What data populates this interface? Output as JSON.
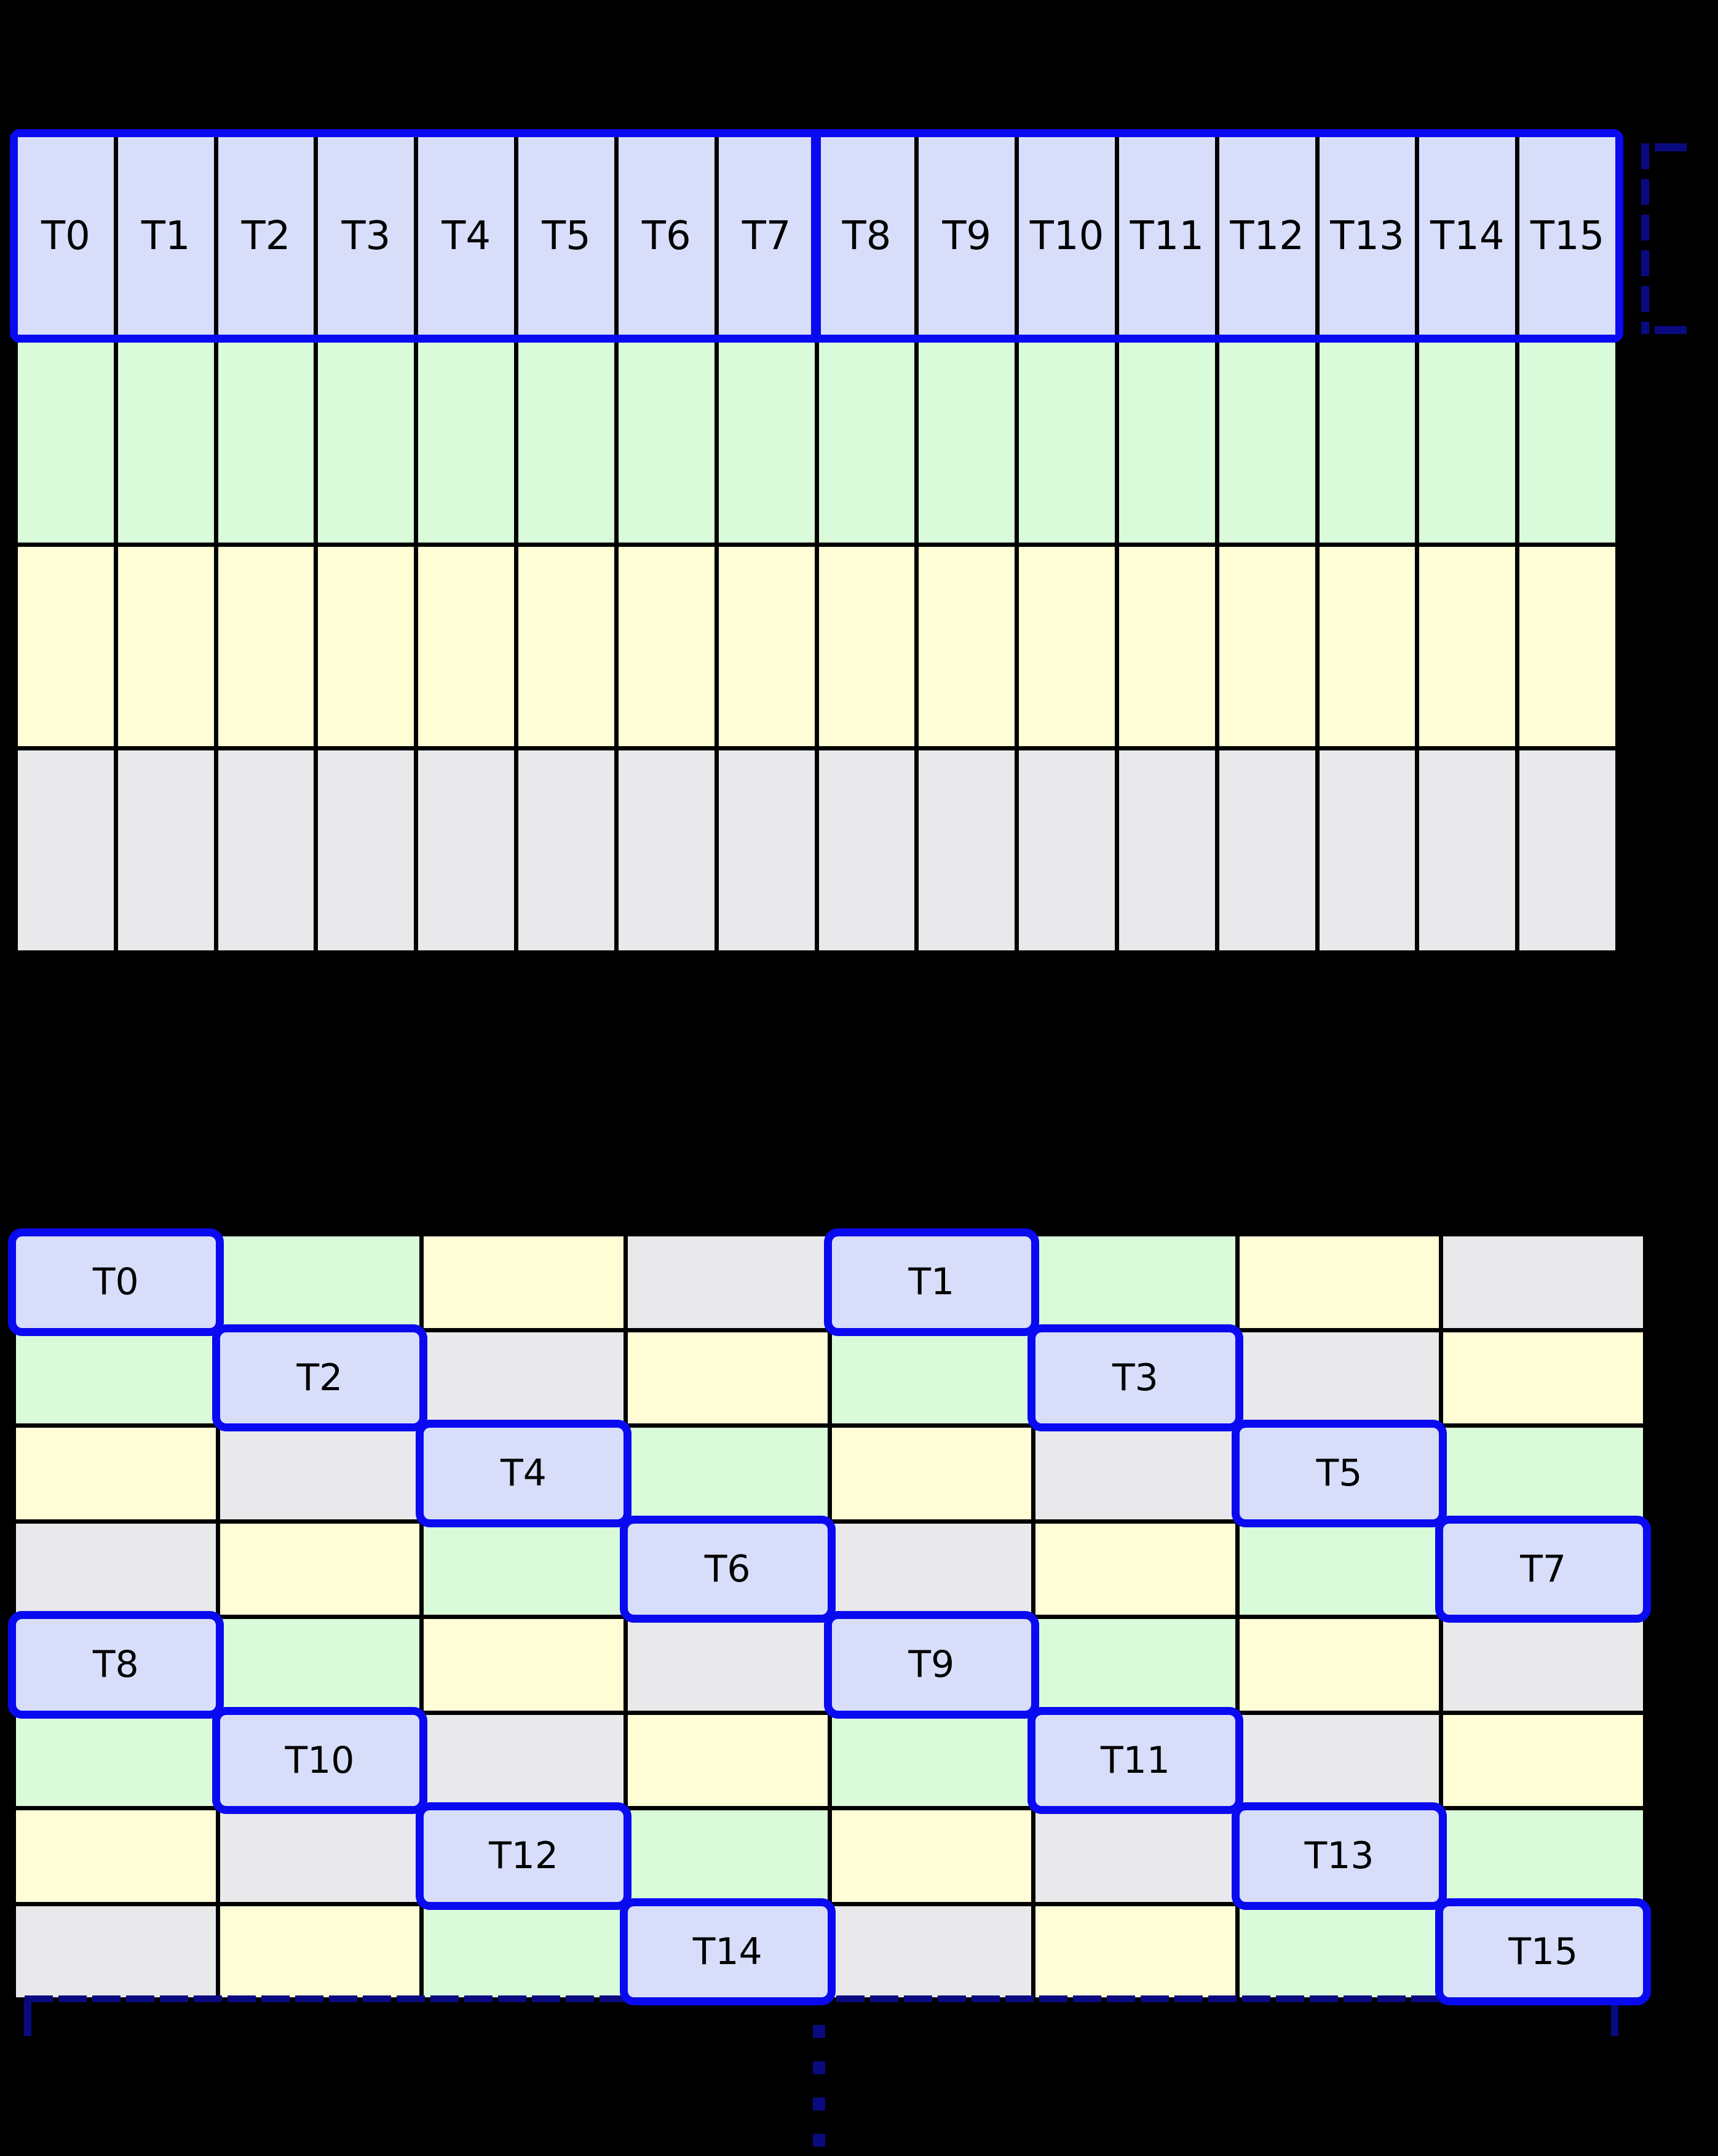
{
  "palette": {
    "cell_blue": "#d8defa",
    "cell_green": "#dafbda",
    "cell_yellow": "#fffdd6",
    "cell_gray": "#e9e8ea",
    "highlight_blue": "#0a0af0",
    "bracket_navy": "#0a0a80",
    "grid_line": "#000000",
    "label_color": "#000000",
    "background": "#000000"
  },
  "top_grid": {
    "columns": 16,
    "header_labels": [
      "T0",
      "T1",
      "T2",
      "T3",
      "T4",
      "T5",
      "T6",
      "T7",
      "T8",
      "T9",
      "T10",
      "T11",
      "T12",
      "T13",
      "T14",
      "T15"
    ],
    "data_row_colors": [
      "green",
      "yellow",
      "gray"
    ]
  },
  "bottom_grid": {
    "rows": [
      [
        {
          "color": "blue",
          "label": "T0"
        },
        {
          "color": "green",
          "label": ""
        },
        {
          "color": "yellow",
          "label": ""
        },
        {
          "color": "gray",
          "label": ""
        },
        {
          "color": "blue",
          "label": "T1"
        },
        {
          "color": "green",
          "label": ""
        },
        {
          "color": "yellow",
          "label": ""
        },
        {
          "color": "gray",
          "label": ""
        }
      ],
      [
        {
          "color": "green",
          "label": ""
        },
        {
          "color": "blue",
          "label": "T2"
        },
        {
          "color": "gray",
          "label": ""
        },
        {
          "color": "yellow",
          "label": ""
        },
        {
          "color": "green",
          "label": ""
        },
        {
          "color": "blue",
          "label": "T3"
        },
        {
          "color": "gray",
          "label": ""
        },
        {
          "color": "yellow",
          "label": ""
        }
      ],
      [
        {
          "color": "yellow",
          "label": ""
        },
        {
          "color": "gray",
          "label": ""
        },
        {
          "color": "blue",
          "label": "T4"
        },
        {
          "color": "green",
          "label": ""
        },
        {
          "color": "yellow",
          "label": ""
        },
        {
          "color": "gray",
          "label": ""
        },
        {
          "color": "blue",
          "label": "T5"
        },
        {
          "color": "green",
          "label": ""
        }
      ],
      [
        {
          "color": "gray",
          "label": ""
        },
        {
          "color": "yellow",
          "label": ""
        },
        {
          "color": "green",
          "label": ""
        },
        {
          "color": "blue",
          "label": "T6"
        },
        {
          "color": "gray",
          "label": ""
        },
        {
          "color": "yellow",
          "label": ""
        },
        {
          "color": "green",
          "label": ""
        },
        {
          "color": "blue",
          "label": "T7"
        }
      ],
      [
        {
          "color": "blue",
          "label": "T8"
        },
        {
          "color": "green",
          "label": ""
        },
        {
          "color": "yellow",
          "label": ""
        },
        {
          "color": "gray",
          "label": ""
        },
        {
          "color": "blue",
          "label": "T9"
        },
        {
          "color": "green",
          "label": ""
        },
        {
          "color": "yellow",
          "label": ""
        },
        {
          "color": "gray",
          "label": ""
        }
      ],
      [
        {
          "color": "green",
          "label": ""
        },
        {
          "color": "blue",
          "label": "T10"
        },
        {
          "color": "gray",
          "label": ""
        },
        {
          "color": "yellow",
          "label": ""
        },
        {
          "color": "green",
          "label": ""
        },
        {
          "color": "blue",
          "label": "T11"
        },
        {
          "color": "gray",
          "label": ""
        },
        {
          "color": "yellow",
          "label": ""
        }
      ],
      [
        {
          "color": "yellow",
          "label": ""
        },
        {
          "color": "gray",
          "label": ""
        },
        {
          "color": "blue",
          "label": "T12"
        },
        {
          "color": "green",
          "label": ""
        },
        {
          "color": "yellow",
          "label": ""
        },
        {
          "color": "gray",
          "label": ""
        },
        {
          "color": "blue",
          "label": "T13"
        },
        {
          "color": "green",
          "label": ""
        }
      ],
      [
        {
          "color": "gray",
          "label": ""
        },
        {
          "color": "yellow",
          "label": ""
        },
        {
          "color": "green",
          "label": ""
        },
        {
          "color": "blue",
          "label": "T14"
        },
        {
          "color": "gray",
          "label": ""
        },
        {
          "color": "yellow",
          "label": ""
        },
        {
          "color": "green",
          "label": ""
        },
        {
          "color": "blue",
          "label": "T15"
        }
      ]
    ]
  }
}
